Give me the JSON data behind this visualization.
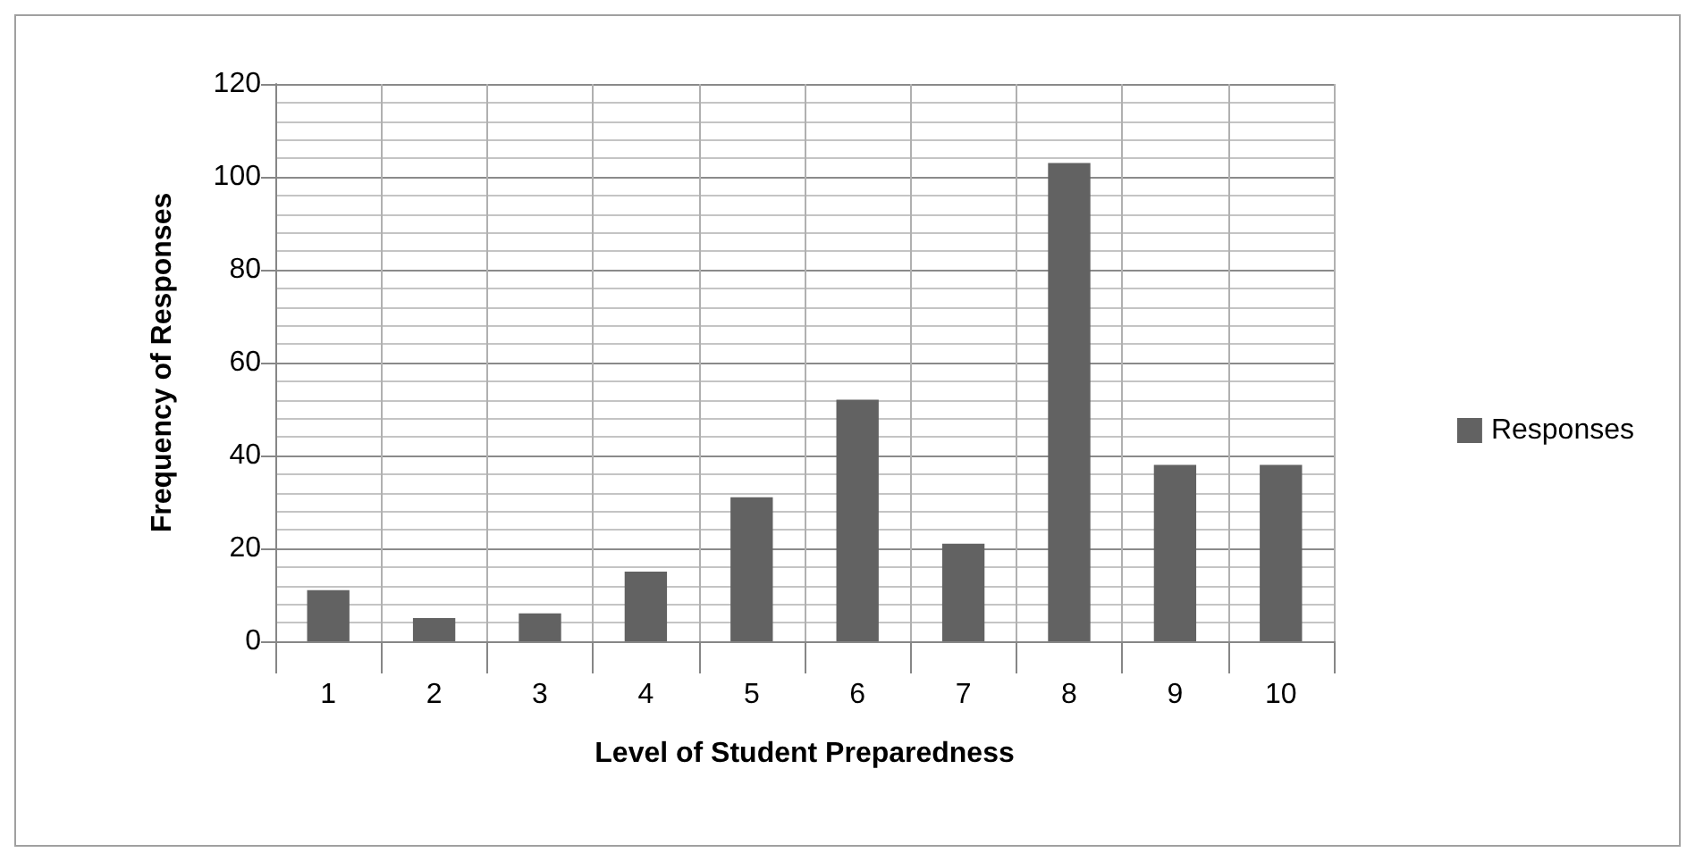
{
  "chart_data": {
    "type": "bar",
    "xlabel": "Level of Student Preparedness",
    "ylabel": "Frequency of Responses",
    "categories": [
      "1",
      "2",
      "3",
      "4",
      "5",
      "6",
      "7",
      "8",
      "9",
      "10"
    ],
    "series": [
      {
        "name": "Responses",
        "color": "#626262",
        "values": [
          11,
          5,
          6,
          15,
          31,
          52,
          21,
          103,
          38,
          38
        ]
      }
    ],
    "ylim": [
      0,
      120
    ],
    "yticks": [
      0,
      20,
      40,
      60,
      80,
      100,
      120
    ],
    "grid": true,
    "legend": "right"
  }
}
